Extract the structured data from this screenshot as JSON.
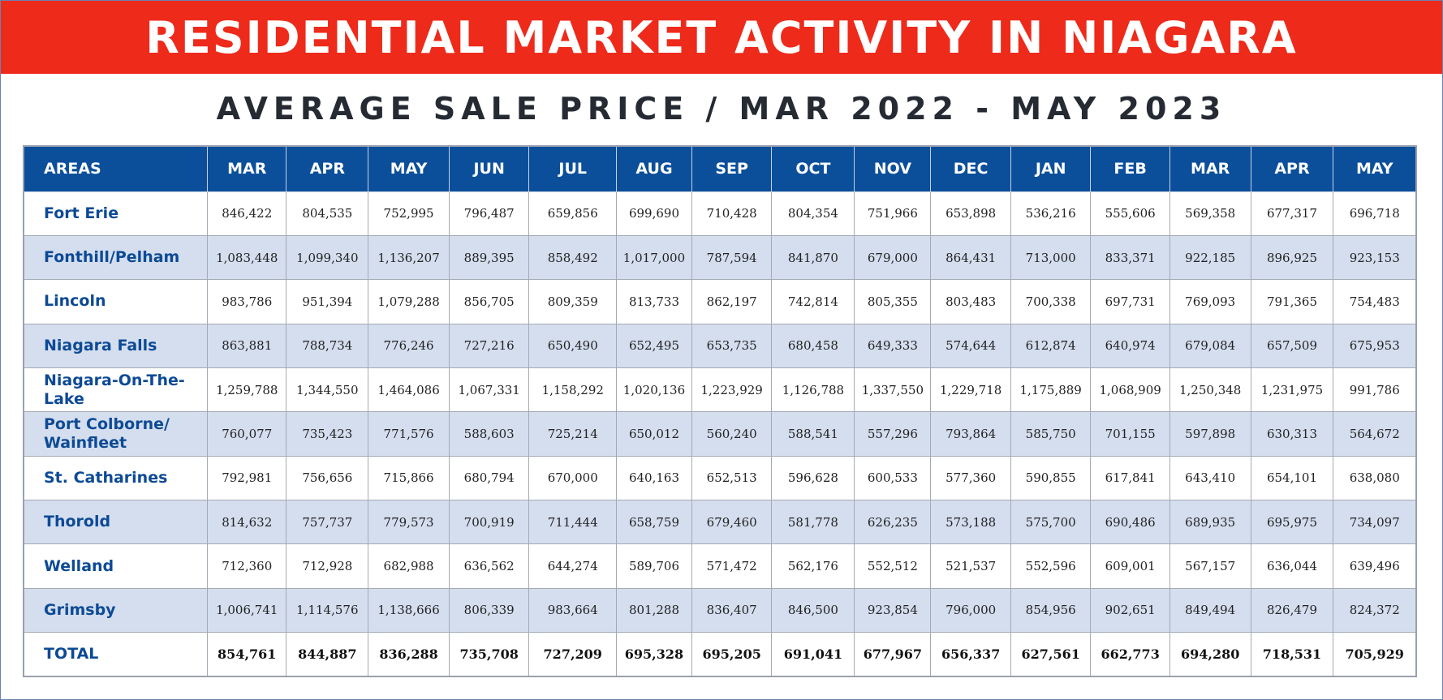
{
  "banner": {
    "title": "RESIDENTIAL MARKET ACTIVITY IN NIAGARA"
  },
  "subtitle": "AVERAGE SALE PRICE / MAR 2022 - MAY 2023",
  "colors": {
    "banner": "#ee2a1b",
    "header": "#0b4f9b",
    "alt_row": "#d4deef",
    "area_text": "#0d4a95"
  },
  "chart_data": {
    "type": "table",
    "title": "AVERAGE SALE PRICE / MAR 2022 - MAY 2023",
    "columns": [
      "AREAS",
      "MAR",
      "APR",
      "MAY",
      "JUN",
      "JUL",
      "AUG",
      "SEP",
      "OCT",
      "NOV",
      "DEC",
      "JAN",
      "FEB",
      "MAR",
      "APR",
      "MAY"
    ],
    "rows": [
      {
        "area": "Fort Erie",
        "values": [
          "846,422",
          "804,535",
          "752,995",
          "796,487",
          "659,856",
          "699,690",
          "710,428",
          "804,354",
          "751,966",
          "653,898",
          "536,216",
          "555,606",
          "569,358",
          "677,317",
          "696,718"
        ]
      },
      {
        "area": "Fonthill/Pelham",
        "values": [
          "1,083,448",
          "1,099,340",
          "1,136,207",
          "889,395",
          "858,492",
          "1,017,000",
          "787,594",
          "841,870",
          "679,000",
          "864,431",
          "713,000",
          "833,371",
          "922,185",
          "896,925",
          "923,153"
        ]
      },
      {
        "area": "Lincoln",
        "values": [
          "983,786",
          "951,394",
          "1,079,288",
          "856,705",
          "809,359",
          "813,733",
          "862,197",
          "742,814",
          "805,355",
          "803,483",
          "700,338",
          "697,731",
          "769,093",
          "791,365",
          "754,483"
        ]
      },
      {
        "area": "Niagara Falls",
        "values": [
          "863,881",
          "788,734",
          "776,246",
          "727,216",
          "650,490",
          "652,495",
          "653,735",
          "680,458",
          "649,333",
          "574,644",
          "612,874",
          "640,974",
          "679,084",
          "657,509",
          "675,953"
        ]
      },
      {
        "area": "Niagara-On-The-Lake",
        "values": [
          "1,259,788",
          "1,344,550",
          "1,464,086",
          "1,067,331",
          "1,158,292",
          "1,020,136",
          "1,223,929",
          "1,126,788",
          "1,337,550",
          "1,229,718",
          "1,175,889",
          "1,068,909",
          "1,250,348",
          "1,231,975",
          "991,786"
        ]
      },
      {
        "area": "Port Colborne/ Wainfleet",
        "values": [
          "760,077",
          "735,423",
          "771,576",
          "588,603",
          "725,214",
          "650,012",
          "560,240",
          "588,541",
          "557,296",
          "793,864",
          "585,750",
          "701,155",
          "597,898",
          "630,313",
          "564,672"
        ]
      },
      {
        "area": "St. Catharines",
        "values": [
          "792,981",
          "756,656",
          "715,866",
          "680,794",
          "670,000",
          "640,163",
          "652,513",
          "596,628",
          "600,533",
          "577,360",
          "590,855",
          "617,841",
          "643,410",
          "654,101",
          "638,080"
        ]
      },
      {
        "area": "Thorold",
        "values": [
          "814,632",
          "757,737",
          "779,573",
          "700,919",
          "711,444",
          "658,759",
          "679,460",
          "581,778",
          "626,235",
          "573,188",
          "575,700",
          "690,486",
          "689,935",
          "695,975",
          "734,097"
        ]
      },
      {
        "area": "Welland",
        "values": [
          "712,360",
          "712,928",
          "682,988",
          "636,562",
          "644,274",
          "589,706",
          "571,472",
          "562,176",
          "552,512",
          "521,537",
          "552,596",
          "609,001",
          "567,157",
          "636,044",
          "639,496"
        ]
      },
      {
        "area": "Grimsby",
        "values": [
          "1,006,741",
          "1,114,576",
          "1,138,666",
          "806,339",
          "983,664",
          "801,288",
          "836,407",
          "846,500",
          "923,854",
          "796,000",
          "854,956",
          "902,651",
          "849,494",
          "826,479",
          "824,372"
        ]
      },
      {
        "area": "TOTAL",
        "values": [
          "854,761",
          "844,887",
          "836,288",
          "735,708",
          "727,209",
          "695,328",
          "695,205",
          "691,041",
          "677,967",
          "656,337",
          "627,561",
          "662,773",
          "694,280",
          "718,531",
          "705,929"
        ]
      }
    ]
  }
}
